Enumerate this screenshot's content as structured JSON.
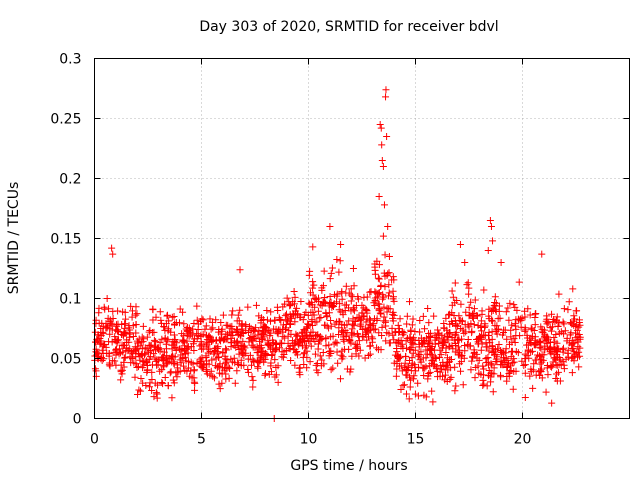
{
  "chart_data": {
    "type": "scatter",
    "title": "Day 303 of 2020, SRMTID for receiver bdvl",
    "xlabel": "GPS time / hours",
    "ylabel": "SRMTID / TECUs",
    "xlim": [
      0,
      25
    ],
    "ylim": [
      0,
      0.3
    ],
    "xticks": [
      0,
      5,
      10,
      15,
      20
    ],
    "xtick_labels": [
      "0",
      "5",
      "10",
      "15",
      "20"
    ],
    "yticks": [
      0,
      0.05,
      0.1,
      0.15,
      0.2,
      0.25,
      0.3
    ],
    "ytick_labels": [
      "0",
      "0.05",
      "0.1",
      "0.15",
      "0.2",
      "0.25",
      "0.3"
    ],
    "grid": true,
    "marker": "plus",
    "marker_color": "#ff0000",
    "x_range": [
      0,
      22.7
    ],
    "series": [
      {
        "name": "SRMTID",
        "segments": [
          {
            "x_start": 0.0,
            "x_end": 2.0,
            "low": 0.03,
            "high": 0.1
          },
          {
            "x_start": 2.0,
            "x_end": 4.0,
            "low": 0.015,
            "high": 0.095
          },
          {
            "x_start": 4.0,
            "x_end": 6.0,
            "low": 0.02,
            "high": 0.095
          },
          {
            "x_start": 6.0,
            "x_end": 8.5,
            "low": 0.025,
            "high": 0.1
          },
          {
            "x_start": 8.5,
            "x_end": 10.0,
            "low": 0.03,
            "high": 0.11
          },
          {
            "x_start": 10.0,
            "x_end": 11.5,
            "low": 0.03,
            "high": 0.135
          },
          {
            "x_start": 11.5,
            "x_end": 13.0,
            "low": 0.03,
            "high": 0.125
          },
          {
            "x_start": 13.0,
            "x_end": 14.0,
            "low": 0.04,
            "high": 0.15
          },
          {
            "x_start": 14.0,
            "x_end": 16.5,
            "low": 0.015,
            "high": 0.095
          },
          {
            "x_start": 16.5,
            "x_end": 18.0,
            "low": 0.015,
            "high": 0.12
          },
          {
            "x_start": 18.0,
            "x_end": 20.0,
            "low": 0.015,
            "high": 0.115
          },
          {
            "x_start": 20.0,
            "x_end": 22.0,
            "low": 0.015,
            "high": 0.1
          },
          {
            "x_start": 22.0,
            "x_end": 22.7,
            "low": 0.03,
            "high": 0.11
          }
        ],
        "outliers": [
          {
            "x": 0.8,
            "y": 0.142
          },
          {
            "x": 0.85,
            "y": 0.137
          },
          {
            "x": 6.8,
            "y": 0.124
          },
          {
            "x": 10.2,
            "y": 0.143
          },
          {
            "x": 11.0,
            "y": 0.16
          },
          {
            "x": 11.5,
            "y": 0.145
          },
          {
            "x": 12.1,
            "y": 0.125
          },
          {
            "x": 13.3,
            "y": 0.185
          },
          {
            "x": 13.35,
            "y": 0.245
          },
          {
            "x": 13.4,
            "y": 0.242
          },
          {
            "x": 13.42,
            "y": 0.228
          },
          {
            "x": 13.45,
            "y": 0.215
          },
          {
            "x": 13.5,
            "y": 0.21
          },
          {
            "x": 13.55,
            "y": 0.178
          },
          {
            "x": 13.6,
            "y": 0.268
          },
          {
            "x": 13.62,
            "y": 0.274
          },
          {
            "x": 13.65,
            "y": 0.235
          },
          {
            "x": 13.7,
            "y": 0.16
          },
          {
            "x": 13.5,
            "y": 0.152
          },
          {
            "x": 17.1,
            "y": 0.145
          },
          {
            "x": 17.3,
            "y": 0.13
          },
          {
            "x": 18.5,
            "y": 0.165
          },
          {
            "x": 18.55,
            "y": 0.16
          },
          {
            "x": 18.6,
            "y": 0.148
          },
          {
            "x": 18.4,
            "y": 0.14
          },
          {
            "x": 19.0,
            "y": 0.13
          },
          {
            "x": 20.9,
            "y": 0.137
          },
          {
            "x": 8.4,
            "y": 0.0
          }
        ]
      }
    ]
  }
}
